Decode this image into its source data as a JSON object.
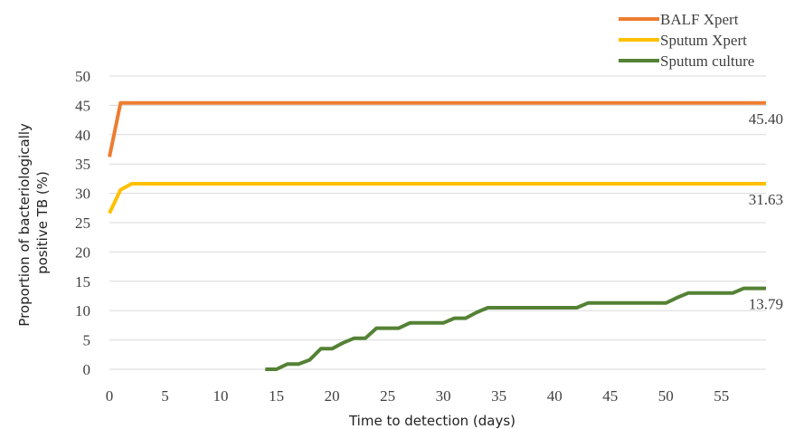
{
  "chart_data": {
    "type": "line",
    "title": "",
    "xlabel": "Time to detection (days)",
    "ylabel_lines": [
      "Proportion of bacteriologically",
      "positive TB (%)"
    ],
    "xlim": [
      0,
      59
    ],
    "ylim": [
      0,
      50
    ],
    "x_ticks": [
      "0",
      "5",
      "10",
      "15",
      "20",
      "25",
      "30",
      "35",
      "40",
      "45",
      "50",
      "55"
    ],
    "y_ticks": [
      "0",
      "5",
      "10",
      "15",
      "20",
      "25",
      "30",
      "35",
      "40",
      "45",
      "50"
    ],
    "grid": "horizontal",
    "legend_position": "top-right",
    "series": [
      {
        "name": "BALF Xpert",
        "color": "#ed7d31",
        "end_label": "45.40",
        "points": [
          [
            0,
            36.2
          ],
          [
            1,
            45.4
          ],
          [
            59,
            45.4
          ]
        ]
      },
      {
        "name": "Sputum Xpert",
        "color": "#ffc000",
        "end_label": "31.63",
        "points": [
          [
            0,
            26.6
          ],
          [
            1,
            30.6
          ],
          [
            2,
            31.63
          ],
          [
            59,
            31.63
          ]
        ]
      },
      {
        "name": "Sputum culture",
        "color": "#548235",
        "end_label": "13.79",
        "points": [
          [
            14,
            0
          ],
          [
            15,
            0
          ],
          [
            16,
            0.9
          ],
          [
            17,
            0.9
          ],
          [
            18,
            1.6
          ],
          [
            19,
            3.5
          ],
          [
            20,
            3.5
          ],
          [
            21,
            4.5
          ],
          [
            22,
            5.3
          ],
          [
            23,
            5.3
          ],
          [
            24,
            7.0
          ],
          [
            25,
            7.0
          ],
          [
            26,
            7.0
          ],
          [
            27,
            7.9
          ],
          [
            28,
            7.9
          ],
          [
            29,
            7.9
          ],
          [
            30,
            7.9
          ],
          [
            31,
            8.7
          ],
          [
            32,
            8.7
          ],
          [
            33,
            9.7
          ],
          [
            34,
            10.5
          ],
          [
            35,
            10.5
          ],
          [
            36,
            10.5
          ],
          [
            37,
            10.5
          ],
          [
            38,
            10.5
          ],
          [
            39,
            10.5
          ],
          [
            40,
            10.5
          ],
          [
            41,
            10.5
          ],
          [
            42,
            10.5
          ],
          [
            43,
            11.3
          ],
          [
            44,
            11.3
          ],
          [
            45,
            11.3
          ],
          [
            46,
            11.3
          ],
          [
            47,
            11.3
          ],
          [
            48,
            11.3
          ],
          [
            49,
            11.3
          ],
          [
            50,
            11.3
          ],
          [
            51,
            12.2
          ],
          [
            52,
            13.0
          ],
          [
            53,
            13.0
          ],
          [
            54,
            13.0
          ],
          [
            55,
            13.0
          ],
          [
            56,
            13.0
          ],
          [
            57,
            13.79
          ],
          [
            58,
            13.79
          ],
          [
            59,
            13.79
          ]
        ]
      }
    ]
  }
}
